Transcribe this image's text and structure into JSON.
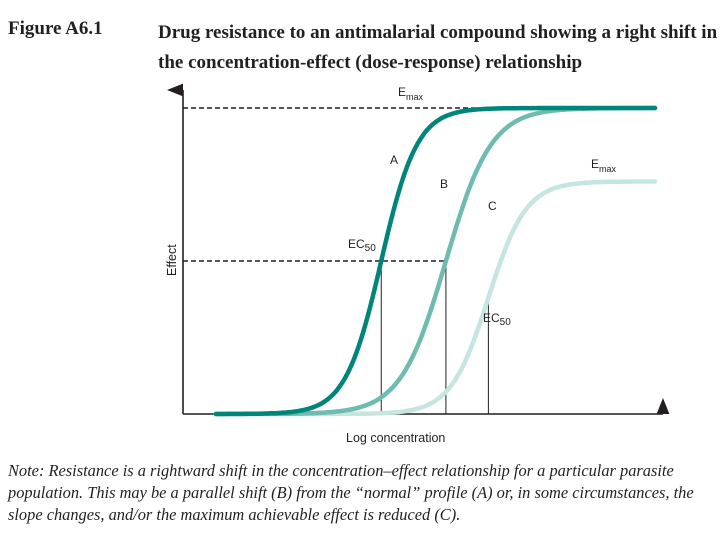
{
  "figure": {
    "label": "Figure A6.1",
    "title": "Drug resistance to an antimalarial compound showing a right shift in the concentration-effect (dose-response) relationship",
    "note": "Note: Resistance is a rightward shift in the concentration–effect relationship for a particular parasite population. This may be a parallel shift (B) from the “normal” profile (A) or, in some circumstances, the slope changes, and/or the maximum achievable effect is reduced (C)."
  },
  "chart_data": {
    "type": "line",
    "xlabel": "Log concentration",
    "ylabel": "Effect",
    "xlim": [
      0,
      1
    ],
    "ylim": [
      0,
      1
    ],
    "grid": false,
    "series": [
      {
        "name": "A",
        "color": "#00857a",
        "max": 1.0,
        "ec50": 0.42,
        "slope": 0.038
      },
      {
        "name": "B",
        "color": "#6dbbb1",
        "max": 1.0,
        "ec50": 0.557,
        "slope": 0.048
      },
      {
        "name": "C",
        "color": "#c5e5e0",
        "max": 0.76,
        "ec50": 0.647,
        "slope": 0.04
      }
    ],
    "annotations": {
      "emax_main": {
        "base": "E",
        "sub": "max"
      },
      "emax_c": {
        "base": "E",
        "sub": "max"
      },
      "ec50_a": {
        "base": "EC",
        "sub": "50"
      },
      "ec50_c": {
        "base": "EC",
        "sub": "50"
      }
    }
  }
}
